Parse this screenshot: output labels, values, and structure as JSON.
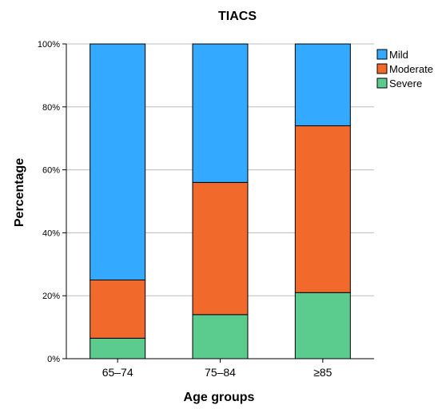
{
  "chart_data": {
    "type": "bar",
    "stacked": true,
    "title": "TIACS",
    "xlabel": "Age groups",
    "ylabel": "Percentage",
    "categories": [
      "65–74",
      "75–84",
      "≥85"
    ],
    "yticks": [
      "0%",
      "20%",
      "40%",
      "60%",
      "80%",
      "100%"
    ],
    "ylim": [
      0,
      100
    ],
    "grid": true,
    "legend_position": "right",
    "series": [
      {
        "name": "Severe",
        "color": "#5ccc8e",
        "values": [
          6.5,
          14,
          21
        ]
      },
      {
        "name": "Moderate",
        "color": "#f26a2b",
        "values": [
          18.5,
          42,
          53
        ]
      },
      {
        "name": "Mild",
        "color": "#33aaff",
        "values": [
          75,
          44,
          26
        ]
      }
    ],
    "legend_order": [
      "Mild",
      "Moderate",
      "Severe"
    ]
  }
}
